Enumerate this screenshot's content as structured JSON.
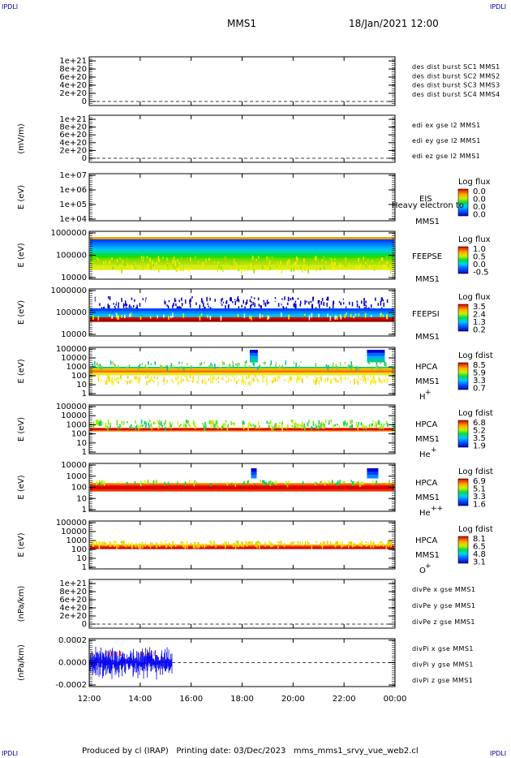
{
  "corner_label": "IPDLI",
  "header": {
    "mission": "MMS1",
    "datetime": "18/Jan/2021 12:00"
  },
  "footer": {
    "text": "Produced by cl (IRAP)   Printing date: 03/Dec/2023   mms_mms1_srvy_vue_web2.cl"
  },
  "x_axis": {
    "ticks": [
      "12:00",
      "14:00",
      "16:00",
      "18:00",
      "20:00",
      "22:00",
      "00:00"
    ]
  },
  "chart_data": [
    {
      "type": "line",
      "ylabel": "",
      "ylim": [
        0,
        1e+21
      ],
      "ticks": [
        "1e+21",
        "8e+20",
        "6e+20",
        "4e+20",
        "2e+20",
        "0"
      ],
      "legend": [
        {
          "name": "des dist burst SC1 MMS1",
          "color": "#0000cc"
        },
        {
          "name": "des dist burst SC2 MMS2",
          "color": "#cc00cc"
        },
        {
          "name": "des dist burst SC3 MMS3",
          "color": "#cc0000"
        },
        {
          "name": "des dist burst SC4 MMS4",
          "color": "#00bb00"
        }
      ]
    },
    {
      "type": "line",
      "ylabel": "(mV/m)",
      "ylim": [
        0,
        1e+21
      ],
      "ticks": [
        "1e+21",
        "8e+20",
        "6e+20",
        "4e+20",
        "2e+20",
        "0"
      ],
      "legend": [
        {
          "name": "edi ex gse l2 MMS1",
          "color": "#cc0000"
        },
        {
          "name": "edi ey gse l2 MMS1",
          "color": "#00bb00"
        },
        {
          "name": "edi ez gse l2 MMS1",
          "color": "#0000cc"
        }
      ]
    },
    {
      "type": "heatmap",
      "ylabel": "E (eV)",
      "ticks": [
        "1e+07",
        "1e+06",
        "1e+05",
        "1e+04"
      ],
      "instrument": "EIS",
      "sub": "MMS1",
      "overlay": "Heavy electron to",
      "cbar_title": "Log flux",
      "cbar_ticks": [
        "0.0",
        "0.0",
        "0.0",
        "0.0"
      ]
    },
    {
      "type": "heatmap",
      "ylabel": "E (eV)",
      "ticks": [
        "1000000",
        "100000",
        "10000"
      ],
      "instrument": "FEEPSE",
      "sub": "MMS1",
      "cbar_title": "Log flux",
      "cbar_ticks": [
        "1.0",
        "0.5",
        "0.0",
        "-0.5"
      ]
    },
    {
      "type": "heatmap",
      "ylabel": "E (eV)",
      "ticks": [
        "1000000",
        "100000",
        "10000"
      ],
      "instrument": "FEEPSI",
      "sub": "MMS1",
      "cbar_title": "Log flux",
      "cbar_ticks": [
        "3.5",
        "2.4",
        "1.3",
        "0.2"
      ]
    },
    {
      "type": "heatmap",
      "ylabel": "E (eV)",
      "ticks": [
        "100000",
        "10000",
        "1000",
        "100",
        "10",
        "1"
      ],
      "instrument": "HPCA",
      "sub": "MMS1",
      "species": "H",
      "charge": "+",
      "cbar_title": "Log fdist",
      "cbar_ticks": [
        "8.5",
        "5.9",
        "3.3",
        "0.7"
      ]
    },
    {
      "type": "heatmap",
      "ylabel": "E (eV)",
      "ticks": [
        "100000",
        "10000",
        "1000",
        "100",
        "10",
        "1"
      ],
      "instrument": "HPCA",
      "sub": "MMS1",
      "species": "He",
      "charge": "+",
      "cbar_title": "Log fdist",
      "cbar_ticks": [
        "6.8",
        "5.2",
        "3.5",
        "1.9"
      ]
    },
    {
      "type": "heatmap",
      "ylabel": "E (eV)",
      "ticks": [
        "10000",
        "1000",
        "100",
        "10",
        "1"
      ],
      "instrument": "HPCA",
      "sub": "MMS1",
      "species": "He",
      "charge": "++",
      "cbar_title": "Log fdist",
      "cbar_ticks": [
        "6.9",
        "5.1",
        "3.3",
        "1.6"
      ]
    },
    {
      "type": "heatmap",
      "ylabel": "E (eV)",
      "ticks": [
        "100000",
        "10000",
        "1000",
        "100",
        "10",
        "1"
      ],
      "instrument": "HPCA",
      "sub": "MMS1",
      "species": "O",
      "charge": "+",
      "cbar_title": "Log fdist",
      "cbar_ticks": [
        "8.1",
        "6.5",
        "4.8",
        "3.1"
      ]
    },
    {
      "type": "line",
      "ylabel": "(nPa/km)",
      "ylim": [
        0,
        1e+21
      ],
      "ticks": [
        "1e+21",
        "8e+20",
        "6e+20",
        "4e+20",
        "2e+20",
        "0"
      ],
      "legend": [
        {
          "name": "divPe x gse MMS1",
          "color": "#cc0000"
        },
        {
          "name": "divPe y gse MMS1",
          "color": "#00bb00"
        },
        {
          "name": "divPe z gse MMS1",
          "color": "#0000cc"
        }
      ]
    },
    {
      "type": "line",
      "ylabel": "(nPa/km)",
      "ylim": [
        -0.0003,
        0.0003
      ],
      "ticks": [
        "0.0002",
        "0.0000",
        "-0.0002"
      ],
      "x_range_hours": [
        12,
        24
      ],
      "data_span_hours": [
        12.0,
        15.25
      ],
      "legend": [
        {
          "name": "divPi x gse MMS1",
          "color": "#cc0000"
        },
        {
          "name": "divPi y gse MMS1",
          "color": "#00bb00"
        },
        {
          "name": "divPi z gse MMS1",
          "color": "#0000cc"
        }
      ]
    }
  ]
}
